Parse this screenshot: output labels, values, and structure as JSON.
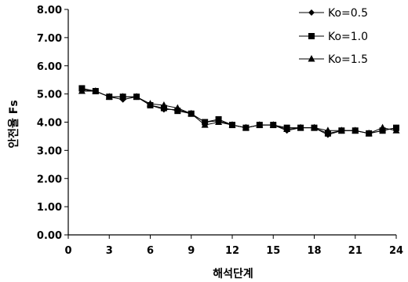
{
  "chart_data": {
    "type": "line",
    "xlabel": "해석단계",
    "ylabel": "안전율 Fs",
    "xlim": [
      0,
      24
    ],
    "ylim": [
      0,
      8
    ],
    "x_ticks": [
      "0",
      "3",
      "6",
      "9",
      "12",
      "15",
      "18",
      "21",
      "24"
    ],
    "y_ticks": [
      "0.00",
      "1.00",
      "2.00",
      "3.00",
      "4.00",
      "5.00",
      "6.00",
      "7.00",
      "8.00"
    ],
    "grid": false,
    "legend_position": "top-right",
    "x": [
      1,
      2,
      3,
      4,
      5,
      6,
      7,
      8,
      9,
      10,
      11,
      12,
      13,
      14,
      15,
      16,
      17,
      18,
      19,
      20,
      21,
      22,
      23,
      24
    ],
    "series": [
      {
        "name": "Ko=0.5",
        "marker": "diamond",
        "values": [
          5.15,
          5.1,
          4.9,
          4.8,
          4.9,
          4.6,
          4.45,
          4.45,
          4.3,
          4.0,
          4.05,
          3.9,
          3.8,
          3.9,
          3.9,
          3.7,
          3.8,
          3.8,
          3.55,
          3.7,
          3.7,
          3.6,
          3.7,
          3.8
        ]
      },
      {
        "name": "Ko=1.0",
        "marker": "square",
        "values": [
          5.2,
          5.1,
          4.9,
          4.9,
          4.9,
          4.6,
          4.5,
          4.4,
          4.3,
          4.0,
          4.1,
          3.9,
          3.8,
          3.9,
          3.9,
          3.8,
          3.8,
          3.8,
          3.6,
          3.7,
          3.7,
          3.6,
          3.7,
          3.8
        ]
      },
      {
        "name": "Ko=1.5",
        "marker": "triangle",
        "values": [
          5.1,
          5.1,
          4.9,
          4.9,
          4.9,
          4.65,
          4.6,
          4.5,
          4.3,
          3.9,
          4.0,
          3.9,
          3.8,
          3.9,
          3.9,
          3.75,
          3.8,
          3.8,
          3.7,
          3.7,
          3.7,
          3.6,
          3.8,
          3.7
        ]
      }
    ]
  }
}
